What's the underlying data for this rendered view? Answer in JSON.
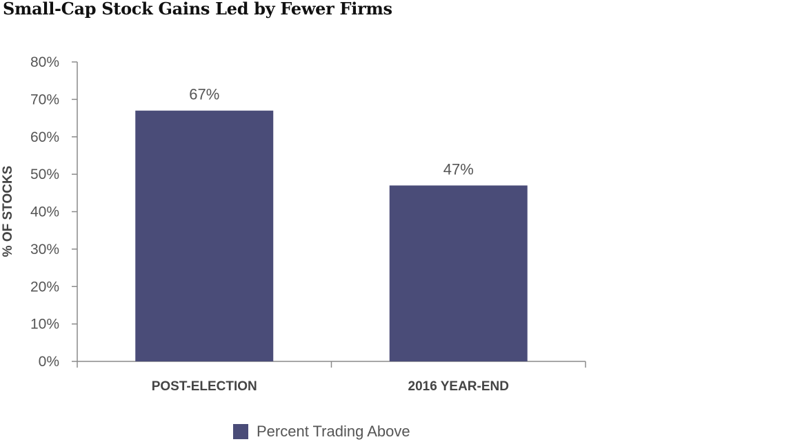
{
  "chart_data": {
    "type": "bar",
    "title": "Small-Cap Stock Gains Led by Fewer Firms",
    "ylabel": "% OF STOCKS",
    "xlabel": "",
    "categories": [
      "POST-ELECTION",
      "2016 YEAR-END"
    ],
    "series": [
      {
        "name": "Percent Trading Above",
        "values": [
          67,
          47
        ],
        "color": "#4a4c78"
      }
    ],
    "data_labels": [
      "67%",
      "47%"
    ],
    "ylim": [
      0,
      80
    ],
    "yticks": [
      0,
      10,
      20,
      30,
      40,
      50,
      60,
      70,
      80
    ],
    "ytick_labels": [
      "0%",
      "10%",
      "20%",
      "30%",
      "40%",
      "50%",
      "60%",
      "70%",
      "80%"
    ],
    "grid": false,
    "legend_position": "bottom-center"
  }
}
